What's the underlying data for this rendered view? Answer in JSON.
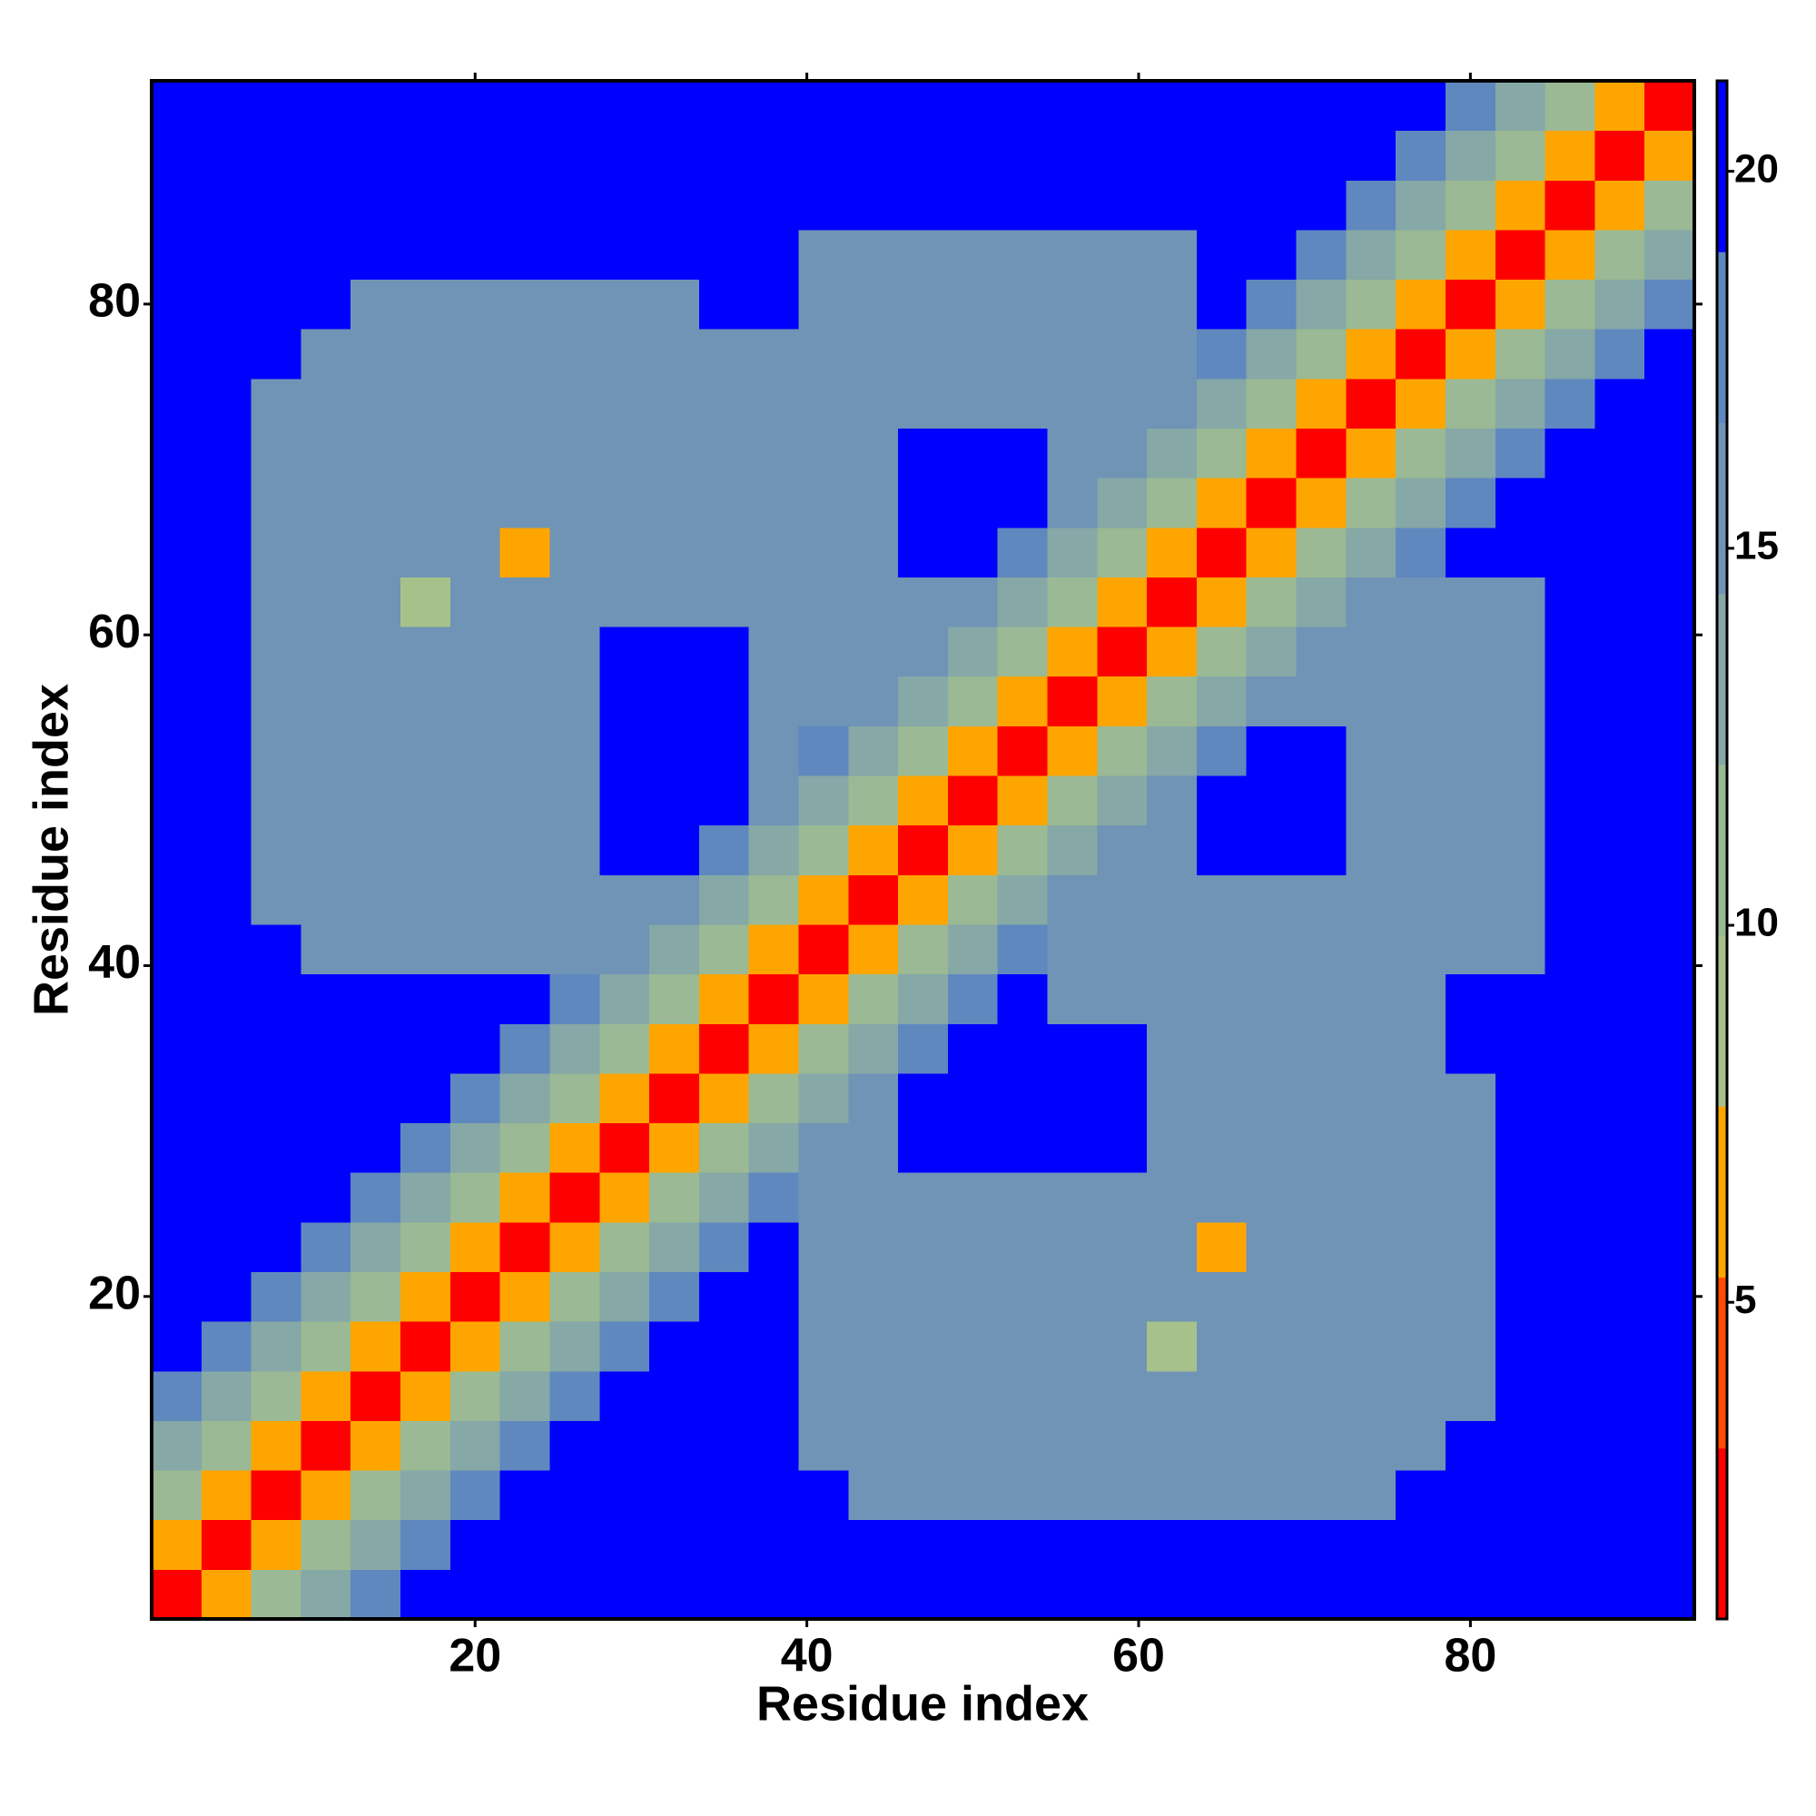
{
  "chart_data": {
    "type": "heatmap",
    "xlabel": "Residue index",
    "ylabel": "Residue index",
    "x": [
      2,
      5,
      8,
      11,
      14,
      17,
      20,
      23,
      26,
      29,
      32,
      35,
      38,
      41,
      44,
      47,
      50,
      53,
      56,
      59,
      62,
      65,
      68,
      71,
      74,
      77,
      80,
      83,
      86,
      89,
      92
    ],
    "y": [
      2,
      5,
      8,
      11,
      14,
      17,
      20,
      23,
      26,
      29,
      32,
      35,
      38,
      41,
      44,
      47,
      50,
      53,
      56,
      59,
      62,
      65,
      68,
      71,
      74,
      77,
      80,
      83,
      86,
      89,
      92
    ],
    "z": [
      [
        2,
        6,
        10,
        13,
        17,
        20,
        22,
        22,
        22,
        22,
        22,
        22,
        22,
        22,
        22,
        22,
        22,
        22,
        22,
        22,
        22,
        22,
        22,
        22,
        22,
        22,
        22,
        22,
        22,
        22,
        22
      ],
      [
        6,
        2,
        6,
        10,
        13,
        17,
        20,
        22,
        22,
        22,
        22,
        22,
        22,
        22,
        22,
        22,
        22,
        22,
        22,
        22,
        22,
        22,
        22,
        22,
        22,
        22,
        22,
        22,
        22,
        22,
        22
      ],
      [
        10,
        6,
        2,
        6,
        10,
        13,
        17,
        20,
        22,
        22,
        22,
        22,
        22,
        22,
        16,
        16,
        16,
        16,
        16,
        16,
        16,
        16,
        16,
        16,
        16,
        22,
        22,
        22,
        22,
        22,
        22
      ],
      [
        13,
        10,
        6,
        2,
        6,
        10,
        13,
        17,
        20,
        22,
        22,
        22,
        22,
        16,
        16,
        16,
        16,
        16,
        16,
        16,
        16,
        16,
        16,
        16,
        16,
        16,
        22,
        22,
        22,
        22,
        22
      ],
      [
        17,
        13,
        10,
        6,
        2,
        6,
        10,
        13,
        17,
        20,
        22,
        22,
        22,
        16,
        16,
        16,
        16,
        16,
        16,
        16,
        16,
        16,
        16,
        16,
        16,
        16,
        16,
        22,
        22,
        22,
        22
      ],
      [
        20,
        17,
        13,
        10,
        6,
        2,
        6,
        10,
        13,
        17,
        20,
        22,
        22,
        16,
        16,
        16,
        16,
        16,
        16,
        16,
        8,
        16,
        16,
        16,
        16,
        16,
        16,
        22,
        22,
        22,
        22
      ],
      [
        22,
        20,
        17,
        13,
        10,
        6,
        2,
        6,
        10,
        13,
        17,
        20,
        22,
        16,
        16,
        16,
        16,
        16,
        16,
        16,
        16,
        16,
        16,
        16,
        16,
        16,
        16,
        22,
        22,
        22,
        22
      ],
      [
        22,
        22,
        20,
        17,
        13,
        10,
        6,
        2,
        6,
        10,
        13,
        17,
        20,
        16,
        16,
        16,
        16,
        16,
        16,
        16,
        16,
        7,
        16,
        16,
        16,
        16,
        16,
        22,
        22,
        22,
        22
      ],
      [
        22,
        22,
        22,
        20,
        17,
        13,
        10,
        6,
        2,
        6,
        10,
        13,
        17,
        16,
        16,
        16,
        16,
        16,
        16,
        16,
        16,
        16,
        16,
        16,
        16,
        16,
        16,
        22,
        22,
        22,
        22
      ],
      [
        22,
        22,
        22,
        22,
        20,
        17,
        13,
        10,
        6,
        2,
        6,
        10,
        13,
        16,
        16,
        22,
        22,
        22,
        22,
        22,
        16,
        16,
        16,
        16,
        16,
        16,
        16,
        22,
        22,
        22,
        22
      ],
      [
        22,
        22,
        22,
        22,
        22,
        20,
        17,
        13,
        10,
        6,
        2,
        6,
        10,
        13,
        16,
        20,
        22,
        22,
        22,
        22,
        16,
        16,
        16,
        16,
        16,
        16,
        16,
        22,
        22,
        22,
        22
      ],
      [
        22,
        22,
        22,
        22,
        22,
        22,
        20,
        17,
        13,
        10,
        6,
        2,
        6,
        10,
        13,
        17,
        20,
        22,
        22,
        22,
        16,
        16,
        16,
        16,
        16,
        16,
        22,
        22,
        22,
        22,
        22
      ],
      [
        22,
        22,
        22,
        22,
        22,
        22,
        22,
        20,
        17,
        13,
        10,
        6,
        2,
        6,
        10,
        13,
        17,
        20,
        16,
        16,
        16,
        16,
        16,
        16,
        16,
        16,
        22,
        22,
        22,
        22,
        22
      ],
      [
        22,
        22,
        22,
        16,
        16,
        16,
        16,
        16,
        16,
        16,
        13,
        10,
        6,
        2,
        6,
        10,
        13,
        17,
        15,
        15,
        15,
        15,
        15,
        15,
        15,
        15,
        15,
        15,
        22,
        22,
        22
      ],
      [
        22,
        22,
        16,
        16,
        16,
        16,
        16,
        16,
        16,
        16,
        16,
        13,
        10,
        6,
        2,
        6,
        10,
        13,
        15,
        15,
        15,
        15,
        15,
        15,
        15,
        15,
        15,
        15,
        22,
        22,
        22
      ],
      [
        22,
        22,
        16,
        16,
        16,
        16,
        16,
        16,
        16,
        22,
        20,
        17,
        13,
        10,
        6,
        2,
        6,
        10,
        13,
        15,
        15,
        22,
        22,
        22,
        15,
        15,
        15,
        15,
        22,
        22,
        22
      ],
      [
        22,
        22,
        16,
        16,
        16,
        16,
        16,
        16,
        16,
        22,
        22,
        20,
        16,
        13,
        10,
        6,
        2,
        6,
        10,
        13,
        15,
        20,
        22,
        22,
        15,
        15,
        15,
        15,
        22,
        22,
        22
      ],
      [
        22,
        22,
        16,
        16,
        16,
        16,
        16,
        16,
        16,
        22,
        22,
        22,
        16,
        17,
        13,
        10,
        6,
        2,
        6,
        10,
        13,
        17,
        20,
        22,
        15,
        15,
        15,
        15,
        22,
        22,
        22
      ],
      [
        22,
        22,
        16,
        16,
        16,
        16,
        16,
        16,
        16,
        22,
        22,
        22,
        16,
        15,
        15,
        13,
        10,
        6,
        2,
        6,
        10,
        13,
        15,
        15,
        15,
        15,
        15,
        15,
        22,
        22,
        22
      ],
      [
        22,
        22,
        16,
        16,
        16,
        16,
        16,
        16,
        16,
        22,
        22,
        22,
        16,
        15,
        15,
        15,
        13,
        10,
        6,
        2,
        6,
        10,
        13,
        15,
        15,
        15,
        15,
        15,
        22,
        22,
        22
      ],
      [
        22,
        22,
        16,
        16,
        16,
        8,
        16,
        16,
        16,
        16,
        16,
        16,
        16,
        15,
        15,
        15,
        15,
        13,
        10,
        6,
        2,
        6,
        10,
        13,
        15,
        15,
        15,
        15,
        22,
        22,
        22
      ],
      [
        22,
        22,
        16,
        16,
        16,
        16,
        16,
        7,
        16,
        16,
        16,
        16,
        16,
        15,
        15,
        22,
        20,
        17,
        13,
        10,
        6,
        2,
        6,
        10,
        13,
        17,
        20,
        22,
        22,
        22,
        22
      ],
      [
        22,
        22,
        16,
        16,
        16,
        16,
        16,
        16,
        16,
        16,
        16,
        16,
        16,
        15,
        15,
        22,
        22,
        20,
        15,
        13,
        10,
        6,
        2,
        6,
        10,
        13,
        17,
        20,
        22,
        22,
        22
      ],
      [
        22,
        22,
        16,
        16,
        16,
        16,
        16,
        16,
        16,
        16,
        16,
        16,
        16,
        15,
        15,
        22,
        22,
        22,
        15,
        15,
        13,
        10,
        6,
        2,
        6,
        10,
        13,
        17,
        20,
        22,
        22
      ],
      [
        22,
        22,
        16,
        16,
        16,
        16,
        16,
        16,
        16,
        16,
        16,
        16,
        16,
        15,
        15,
        15,
        15,
        15,
        15,
        15,
        15,
        13,
        10,
        6,
        2,
        6,
        10,
        13,
        17,
        20,
        22
      ],
      [
        22,
        22,
        22,
        16,
        16,
        16,
        16,
        16,
        16,
        16,
        16,
        16,
        16,
        15,
        15,
        15,
        15,
        15,
        15,
        15,
        15,
        17,
        13,
        10,
        6,
        2,
        6,
        10,
        13,
        17,
        20
      ],
      [
        22,
        22,
        22,
        22,
        16,
        16,
        16,
        16,
        16,
        16,
        16,
        22,
        22,
        15,
        15,
        15,
        15,
        15,
        15,
        15,
        15,
        20,
        17,
        13,
        10,
        6,
        2,
        6,
        10,
        13,
        17
      ],
      [
        22,
        22,
        22,
        22,
        22,
        22,
        22,
        22,
        22,
        22,
        22,
        22,
        22,
        15,
        15,
        15,
        15,
        15,
        15,
        15,
        15,
        22,
        20,
        17,
        13,
        10,
        6,
        2,
        6,
        10,
        13
      ],
      [
        22,
        22,
        22,
        22,
        22,
        22,
        22,
        22,
        22,
        22,
        22,
        22,
        22,
        22,
        22,
        22,
        22,
        22,
        22,
        22,
        22,
        22,
        22,
        20,
        17,
        13,
        10,
        6,
        2,
        6,
        10
      ],
      [
        22,
        22,
        22,
        22,
        22,
        22,
        22,
        22,
        22,
        22,
        22,
        22,
        22,
        22,
        22,
        22,
        22,
        22,
        22,
        22,
        22,
        22,
        22,
        22,
        20,
        17,
        13,
        10,
        6,
        2,
        6
      ],
      [
        22,
        22,
        22,
        22,
        22,
        22,
        22,
        22,
        22,
        22,
        22,
        22,
        22,
        22,
        22,
        22,
        22,
        22,
        22,
        22,
        22,
        22,
        22,
        22,
        22,
        20,
        17,
        13,
        10,
        6,
        2
      ]
    ],
    "xlim": [
      0.5,
      93.5
    ],
    "ylim": [
      0.5,
      93.5
    ],
    "xticks": [
      20,
      40,
      60,
      80
    ],
    "yticks": [
      20,
      40,
      60,
      80
    ],
    "zlim": [
      0.8,
      21.2
    ],
    "colorbar_ticks": [
      5,
      10,
      15,
      20
    ],
    "colorscale": [
      "#ff0000",
      "#ff4a00",
      "#ffa500",
      "#a6c28a",
      "#9ab994",
      "#86a8a6",
      "#6f94b6",
      "#5f88bf",
      "#0000ff"
    ]
  }
}
